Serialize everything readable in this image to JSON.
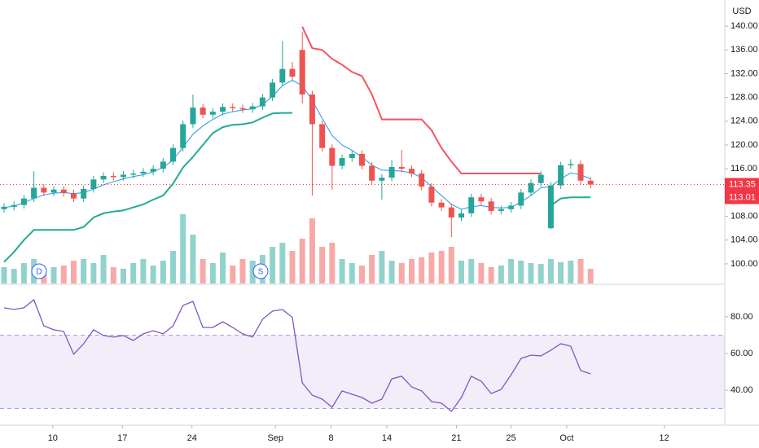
{
  "chart_data": [
    {
      "type": "candlestick",
      "currency": "USD",
      "open": [
        109.2,
        109.6,
        109.9,
        111.0,
        112.8,
        112.0,
        112.5,
        111.9,
        111.0,
        112.6,
        114.2,
        114.8,
        114.6,
        115.0,
        115.2,
        115.5,
        116.0,
        117.2,
        119.5,
        123.5,
        126.3,
        125.1,
        125.6,
        126.4,
        126.2,
        126.0,
        126.5,
        128.0,
        130.5,
        132.8,
        136.0,
        128.5,
        123.5,
        119.5,
        116.5,
        117.8,
        118.5,
        116.5,
        114.0,
        114.5,
        116.3,
        116.0,
        115.2,
        113.0,
        110.3,
        109.5,
        107.8,
        108.5,
        111.2,
        110.5,
        108.9,
        109.2,
        109.8,
        112.0,
        113.6,
        106.0,
        113.2,
        116.6,
        116.8,
        114.0
      ],
      "high": [
        110.2,
        110.5,
        111.6,
        115.6,
        113.4,
        113.1,
        113.1,
        112.5,
        113.2,
        114.8,
        115.4,
        115.4,
        115.6,
        115.8,
        116.1,
        116.6,
        117.8,
        120.1,
        124.1,
        128.5,
        126.9,
        126.2,
        127.0,
        127.0,
        126.8,
        127.1,
        128.6,
        131.1,
        137.5,
        134.0,
        139.0,
        129.1,
        124.1,
        120.1,
        118.4,
        119.1,
        119.1,
        117.1,
        115.1,
        117.5,
        119.2,
        116.6,
        115.8,
        113.6,
        110.9,
        110.1,
        109.1,
        111.8,
        111.8,
        111.1,
        109.8,
        110.4,
        112.6,
        114.2,
        115.6,
        113.8,
        117.2,
        117.6,
        117.4,
        114.6
      ],
      "low": [
        108.6,
        109.0,
        109.3,
        110.4,
        111.4,
        111.4,
        111.3,
        110.4,
        110.4,
        112.0,
        113.6,
        114.0,
        114.0,
        114.4,
        114.6,
        114.9,
        115.4,
        116.6,
        118.9,
        122.9,
        124.5,
        124.5,
        125.0,
        125.6,
        125.4,
        125.4,
        125.9,
        127.4,
        129.9,
        130.9,
        127.0,
        111.5,
        118.9,
        112.5,
        115.9,
        117.2,
        115.9,
        113.4,
        110.8,
        113.9,
        115.4,
        114.6,
        112.4,
        109.7,
        108.9,
        104.5,
        107.2,
        107.9,
        109.9,
        108.3,
        108.3,
        108.6,
        109.2,
        111.4,
        113.0,
        105.8,
        112.6,
        116.0,
        113.4,
        112.7
      ],
      "close": [
        109.6,
        109.9,
        111.0,
        112.8,
        112.0,
        112.5,
        111.9,
        111.0,
        112.6,
        114.2,
        114.8,
        114.6,
        115.0,
        115.2,
        115.5,
        116.0,
        117.2,
        119.5,
        123.5,
        126.3,
        125.1,
        125.6,
        126.4,
        126.2,
        126.0,
        126.5,
        128.0,
        130.5,
        132.8,
        131.5,
        128.5,
        123.5,
        119.5,
        116.5,
        117.8,
        118.5,
        116.5,
        114.0,
        114.5,
        116.3,
        116.0,
        115.2,
        113.0,
        110.3,
        109.5,
        107.8,
        108.5,
        111.2,
        110.5,
        108.9,
        109.2,
        109.8,
        112.0,
        113.6,
        115.0,
        113.2,
        116.6,
        116.8,
        114.0,
        113.35
      ],
      "volume": [
        20,
        18,
        25,
        30,
        15,
        20,
        22,
        28,
        30,
        25,
        35,
        20,
        18,
        25,
        30,
        22,
        28,
        40,
        85,
        60,
        30,
        25,
        38,
        22,
        30,
        28,
        35,
        45,
        50,
        40,
        55,
        80,
        45,
        50,
        30,
        25,
        22,
        35,
        40,
        28,
        25,
        30,
        32,
        38,
        40,
        45,
        28,
        30,
        25,
        20,
        22,
        30,
        28,
        25,
        24,
        30,
        26,
        28,
        30,
        18
      ],
      "up_color": "#26a69a",
      "down_color": "#ef5350",
      "lines": [
        {
          "color": "#2196f3",
          "values": [
            109.5,
            109.7,
            110.3,
            111.0,
            111.6,
            111.9,
            112.0,
            111.8,
            112.0,
            112.6,
            113.3,
            113.8,
            114.3,
            114.7,
            115.0,
            115.5,
            116.2,
            117.5,
            119.6,
            121.8,
            123.2,
            124.3,
            125.2,
            125.6,
            125.9,
            126.1,
            126.8,
            128.2,
            130.0,
            130.9,
            130.0,
            127.5,
            124.5,
            121.6,
            120.0,
            119.1,
            118.0,
            116.6,
            115.8,
            115.7,
            115.6,
            115.3,
            114.5,
            113.0,
            111.5,
            110.0,
            109.2,
            109.6,
            109.8,
            109.5,
            109.4,
            109.5,
            110.4,
            111.5,
            112.8,
            113.0,
            114.3,
            115.3,
            115.0,
            114.3
          ]
        },
        {
          "color": "#22ab94",
          "values": [
            100.3,
            102.0,
            104.0,
            105.7,
            105.7,
            105.7,
            105.7,
            105.7,
            106.2,
            107.8,
            108.5,
            108.8,
            109.0,
            109.5,
            110.0,
            110.8,
            111.5,
            113.5,
            116.2,
            118.0,
            120.0,
            122.0,
            123.0,
            123.4,
            123.5,
            123.8,
            124.6,
            125.3,
            125.4,
            125.4,
            null,
            null,
            null,
            null,
            null,
            null,
            null,
            null,
            null,
            null,
            null,
            null,
            null,
            null,
            null,
            null,
            null,
            null,
            null,
            null,
            null,
            null,
            null,
            null,
            null,
            109.8,
            111.0,
            111.2,
            111.2,
            111.2
          ]
        },
        {
          "color": "#f7525f",
          "values": [
            null,
            null,
            null,
            null,
            null,
            null,
            null,
            null,
            null,
            null,
            null,
            null,
            null,
            null,
            null,
            null,
            null,
            null,
            null,
            null,
            null,
            null,
            null,
            null,
            null,
            null,
            null,
            null,
            null,
            null,
            139.9,
            136.3,
            136.0,
            134.5,
            133.5,
            132.3,
            131.6,
            128.5,
            124.3,
            124.3,
            124.3,
            124.3,
            124.3,
            122.5,
            119.5,
            117.2,
            115.2,
            115.2,
            115.2,
            115.2,
            115.2,
            115.2,
            115.2,
            115.2,
            115.2,
            null,
            null,
            null,
            null,
            null
          ]
        }
      ],
      "ylim": [
        96.7,
        144.4
      ],
      "yticks": [
        {
          "value": 100,
          "label": "100.00"
        },
        {
          "value": 104,
          "label": "104.00"
        },
        {
          "value": 108,
          "label": "108.00"
        },
        {
          "value": 112,
          "label": "112.00"
        },
        {
          "value": 116,
          "label": "116.00"
        },
        {
          "value": 120,
          "label": "120.00"
        },
        {
          "value": 124,
          "label": "124.00"
        },
        {
          "value": 128,
          "label": "128.00"
        },
        {
          "value": 132,
          "label": "132.00"
        },
        {
          "value": 136,
          "label": "136.00"
        },
        {
          "value": 140,
          "label": "140.00"
        }
      ],
      "xlim": [
        -0.41,
        72.5
      ],
      "xticks": [
        {
          "value": 4.9,
          "label": "10"
        },
        {
          "value": 11.9,
          "label": "17"
        },
        {
          "value": 18.9,
          "label": "24"
        },
        {
          "value": 27.3,
          "label": "Sep"
        },
        {
          "value": 32.9,
          "label": "8"
        },
        {
          "value": 38.5,
          "label": "14"
        },
        {
          "value": 45.5,
          "label": "21"
        },
        {
          "value": 51.0,
          "label": "25"
        },
        {
          "value": 56.6,
          "label": "Oct"
        },
        {
          "value": 66.4,
          "label": "12"
        }
      ],
      "price_labels": [
        113.35,
        113.01
      ],
      "events": [
        "D",
        "S"
      ]
    },
    {
      "type": "line",
      "color": "#7e57c2",
      "values": [
        84.9,
        84.0,
        84.9,
        89.3,
        75.1,
        72.9,
        72.0,
        59.6,
        65.3,
        72.9,
        69.8,
        68.9,
        69.8,
        67.1,
        70.7,
        72.4,
        70.7,
        75.1,
        86.2,
        88.4,
        74.2,
        74.2,
        77.3,
        74.2,
        70.7,
        68.9,
        78.7,
        83.1,
        84.0,
        79.6,
        44.0,
        37.3,
        35.1,
        30.7,
        39.6,
        37.8,
        36.0,
        32.9,
        35.1,
        46.2,
        47.6,
        41.8,
        39.6,
        33.8,
        32.9,
        28.4,
        36.0,
        47.6,
        44.9,
        38.2,
        40.4,
        48.4,
        57.3,
        59.1,
        58.7,
        61.8,
        65.3,
        64.0,
        50.7,
        48.9
      ],
      "ylim": [
        21.8,
        96.4
      ],
      "yticks": [
        {
          "value": 40,
          "label": "40.00"
        },
        {
          "value": 60,
          "label": "60.00"
        },
        {
          "value": 80,
          "label": "80.00"
        }
      ],
      "band": [
        30,
        70
      ]
    }
  ]
}
